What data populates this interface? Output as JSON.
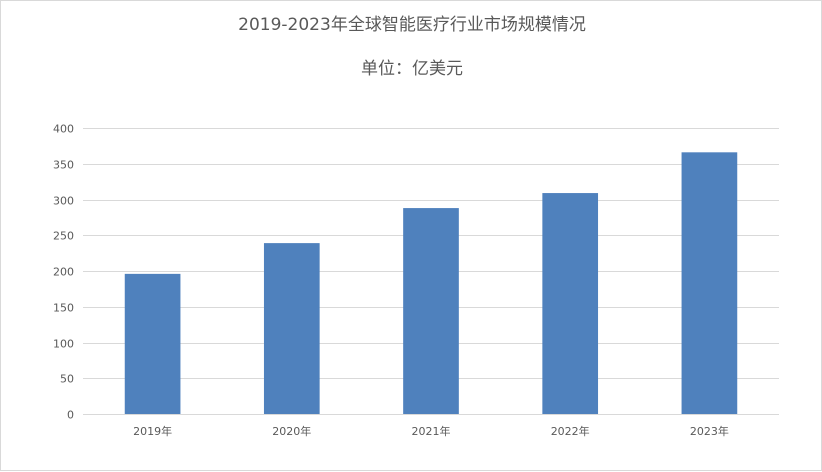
{
  "chart_data": {
    "type": "bar",
    "title": "2019-2023年全球智能医疗行业市场规模情况",
    "subtitle": "单位：亿美元",
    "xlabel": "",
    "ylabel": "",
    "categories": [
      "2019年",
      "2020年",
      "2021年",
      "2022年",
      "2023年"
    ],
    "values": [
      196,
      239,
      288,
      309,
      366
    ],
    "ylim": [
      0,
      400
    ],
    "yticks": [
      0,
      50,
      100,
      150,
      200,
      250,
      300,
      350,
      400
    ],
    "grid": true,
    "legend": "none",
    "bar_color": "#4f81bd"
  }
}
